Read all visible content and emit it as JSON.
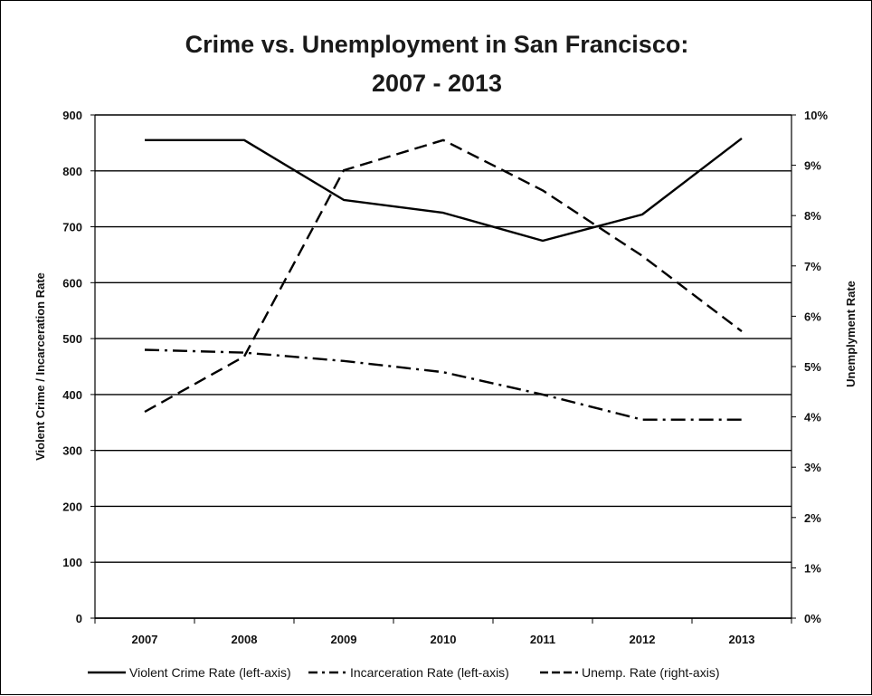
{
  "chart_data": {
    "type": "line",
    "title": [
      "Crime vs. Unemployment in San Francisco:",
      "2007 - 2013"
    ],
    "x": [
      "2007",
      "2008",
      "2009",
      "2010",
      "2011",
      "2012",
      "2013"
    ],
    "left_axis": {
      "label": "Violent Crime / Incarceration Rate",
      "ylim": [
        0,
        900
      ],
      "ticks": [
        "0",
        "100",
        "200",
        "300",
        "400",
        "500",
        "600",
        "700",
        "800",
        "900"
      ]
    },
    "right_axis": {
      "label": "Unemplyment Rate",
      "ylim": [
        0,
        10
      ],
      "ticks": [
        "0%",
        "1%",
        "2%",
        "3%",
        "4%",
        "5%",
        "6%",
        "7%",
        "8%",
        "9%",
        "10%"
      ]
    },
    "series": [
      {
        "name": "Violent Crime Rate (left-axis)",
        "axis": "left",
        "style": "solid",
        "values": [
          855,
          855,
          748,
          725,
          675,
          722,
          858
        ]
      },
      {
        "name": "Incarceration Rate (left-axis)",
        "axis": "left",
        "style": "dashdot",
        "values": [
          480,
          475,
          460,
          440,
          400,
          355,
          355
        ]
      },
      {
        "name": "Unemp. Rate (right-axis)",
        "axis": "right",
        "style": "dashed",
        "values": [
          4.1,
          5.2,
          8.9,
          9.5,
          8.5,
          7.2,
          5.7
        ]
      }
    ],
    "grid": "horizontal",
    "legend_position": "bottom",
    "colors": {
      "lines": "#000000",
      "grid": "#000000"
    }
  }
}
